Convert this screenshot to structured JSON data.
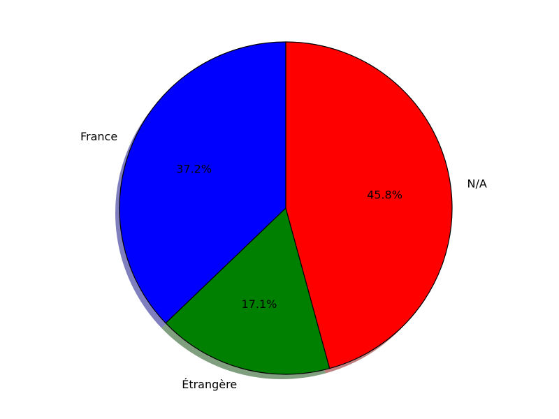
{
  "chart_data": {
    "type": "pie",
    "title": "",
    "start_angle_deg": 90,
    "direction": "counterclockwise",
    "shadow": true,
    "slices": [
      {
        "label": "France",
        "value": 37.2,
        "pct_label": "37.2%",
        "color": "#0000ff",
        "shadow_color": "#00007f"
      },
      {
        "label": "Étrangère",
        "value": 17.1,
        "pct_label": "17.1%",
        "color": "#008000",
        "shadow_color": "#004000"
      },
      {
        "label": "N/A",
        "value": 45.8,
        "pct_label": "45.8%",
        "color": "#ff0000",
        "shadow_color": "#7f0000"
      }
    ]
  }
}
